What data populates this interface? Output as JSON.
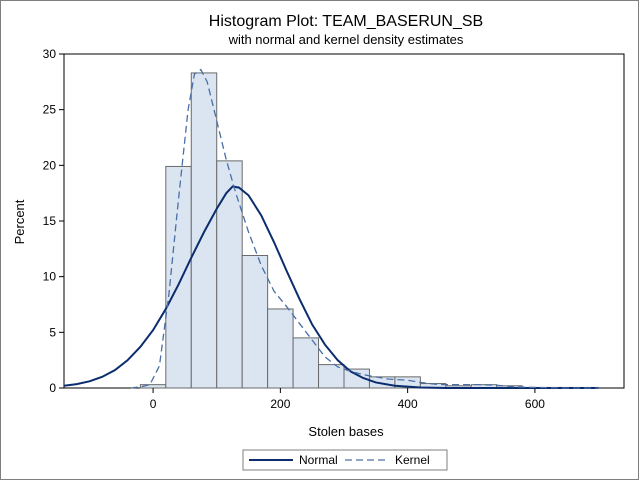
{
  "chart_data": {
    "type": "bar",
    "title": "Histogram Plot: TEAM_BASERUN_SB",
    "subtitle": "with normal and kernel density estimates",
    "xlabel": "Stolen bases",
    "ylabel": "Percent",
    "xlim": [
      -140,
      740
    ],
    "ylim": [
      0,
      30
    ],
    "x_ticks": [
      0,
      200,
      400,
      600
    ],
    "y_ticks": [
      0,
      5,
      10,
      15,
      20,
      25,
      30
    ],
    "bin_width": 40,
    "bins": [
      {
        "start": -20,
        "end": 20,
        "value": 0.3
      },
      {
        "start": 20,
        "end": 60,
        "value": 19.9
      },
      {
        "start": 60,
        "end": 100,
        "value": 28.3
      },
      {
        "start": 100,
        "end": 140,
        "value": 20.4
      },
      {
        "start": 140,
        "end": 180,
        "value": 11.9
      },
      {
        "start": 180,
        "end": 220,
        "value": 7.1
      },
      {
        "start": 220,
        "end": 260,
        "value": 4.5
      },
      {
        "start": 260,
        "end": 300,
        "value": 2.1
      },
      {
        "start": 300,
        "end": 340,
        "value": 1.7
      },
      {
        "start": 340,
        "end": 380,
        "value": 1.0
      },
      {
        "start": 380,
        "end": 420,
        "value": 1.0
      },
      {
        "start": 420,
        "end": 460,
        "value": 0.4
      },
      {
        "start": 460,
        "end": 500,
        "value": 0.2
      },
      {
        "start": 500,
        "end": 540,
        "value": 0.3
      },
      {
        "start": 540,
        "end": 580,
        "value": 0.2
      },
      {
        "start": 580,
        "end": 620,
        "value": 0.05
      },
      {
        "start": 620,
        "end": 660,
        "value": 0.05
      },
      {
        "start": 660,
        "end": 700,
        "value": 0.05
      }
    ],
    "series": [
      {
        "name": "Normal",
        "style": "solid",
        "color": "#0b2d6e",
        "points": [
          [
            -140,
            0.2
          ],
          [
            -120,
            0.35
          ],
          [
            -100,
            0.6
          ],
          [
            -80,
            1.0
          ],
          [
            -60,
            1.6
          ],
          [
            -40,
            2.5
          ],
          [
            -20,
            3.7
          ],
          [
            0,
            5.2
          ],
          [
            20,
            7.1
          ],
          [
            40,
            9.3
          ],
          [
            60,
            11.7
          ],
          [
            80,
            14.0
          ],
          [
            100,
            16.1
          ],
          [
            115,
            17.5
          ],
          [
            125,
            18.1
          ],
          [
            135,
            18.0
          ],
          [
            150,
            17.3
          ],
          [
            170,
            15.5
          ],
          [
            190,
            13.1
          ],
          [
            210,
            10.5
          ],
          [
            230,
            8.0
          ],
          [
            250,
            5.7
          ],
          [
            270,
            3.9
          ],
          [
            290,
            2.5
          ],
          [
            310,
            1.5
          ],
          [
            330,
            0.9
          ],
          [
            350,
            0.5
          ],
          [
            380,
            0.2
          ],
          [
            420,
            0.05
          ],
          [
            460,
            0.0
          ],
          [
            700,
            0.0
          ]
        ]
      },
      {
        "name": "Kernel",
        "style": "dashed",
        "color": "#4a6fa5",
        "points": [
          [
            -35,
            0.0
          ],
          [
            -20,
            0.1
          ],
          [
            -5,
            0.3
          ],
          [
            10,
            2.0
          ],
          [
            25,
            8.5
          ],
          [
            40,
            17.0
          ],
          [
            55,
            25.0
          ],
          [
            65,
            28.2
          ],
          [
            75,
            28.6
          ],
          [
            85,
            27.5
          ],
          [
            100,
            24.0
          ],
          [
            115,
            20.5
          ],
          [
            130,
            17.5
          ],
          [
            150,
            14.0
          ],
          [
            170,
            11.0
          ],
          [
            190,
            8.7
          ],
          [
            210,
            7.3
          ],
          [
            230,
            5.8
          ],
          [
            250,
            4.3
          ],
          [
            270,
            2.8
          ],
          [
            290,
            1.9
          ],
          [
            310,
            1.5
          ],
          [
            330,
            1.2
          ],
          [
            350,
            1.0
          ],
          [
            370,
            0.8
          ],
          [
            400,
            0.7
          ],
          [
            420,
            0.5
          ],
          [
            450,
            0.3
          ],
          [
            480,
            0.3
          ],
          [
            510,
            0.3
          ],
          [
            540,
            0.25
          ],
          [
            570,
            0.1
          ],
          [
            600,
            0.05
          ],
          [
            650,
            0.0
          ],
          [
            700,
            0.0
          ]
        ]
      }
    ],
    "legend": {
      "position": "bottom",
      "entries": [
        "Normal",
        "Kernel"
      ]
    },
    "grid": false,
    "colors": {
      "bar_fill": "#dbe5f2",
      "bar_stroke": "#6a6a6a",
      "axis": "#000000",
      "frame": "#7f7f7f"
    }
  }
}
